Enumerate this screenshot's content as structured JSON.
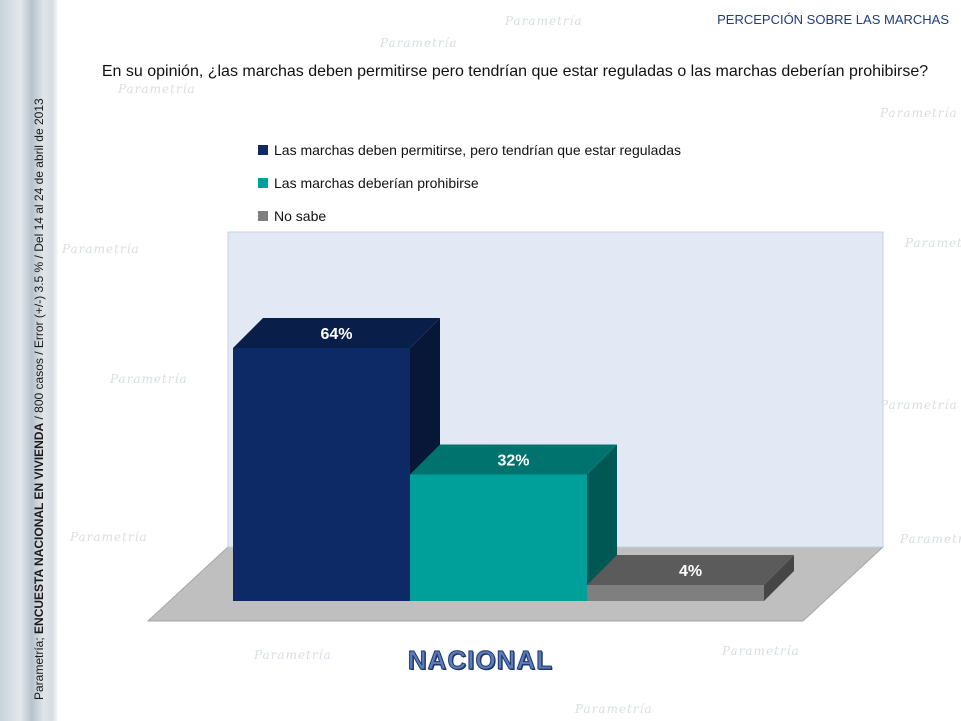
{
  "header": {
    "title": "PERCEPCIÓN SOBRE LAS MARCHAS"
  },
  "sidebar": {
    "prefix": "Parametría; ",
    "survey": "ENCUESTA NACIONAL EN VIVIENDA",
    "suffix": " / 800 casos / Error (+/-) 3.5 % / Del 14 al 24  de abril de 2013"
  },
  "watermark": {
    "text": "Parametría"
  },
  "question": "En su opinión, ¿las marchas deben permitirse pero tendrían que estar reguladas o las marchas deberían prohibirse?",
  "chart_data": {
    "type": "bar",
    "title": "",
    "xlabel": "NACIONAL",
    "ylabel": "",
    "ylim": [
      0,
      70
    ],
    "grid": false,
    "legend_position": "top",
    "categories": [
      "NACIONAL"
    ],
    "series": [
      {
        "name": "Las marchas deben permitirse, pero tendrían que estar reguladas",
        "values": [
          64
        ],
        "label": "64%",
        "color": "#0d2a66"
      },
      {
        "name": "Las marchas deberían prohibirse",
        "values": [
          32
        ],
        "label": "32%",
        "color": "#00a09a"
      },
      {
        "name": "No sabe",
        "values": [
          4
        ],
        "label": "4%",
        "color": "#7f7f7f"
      }
    ]
  }
}
